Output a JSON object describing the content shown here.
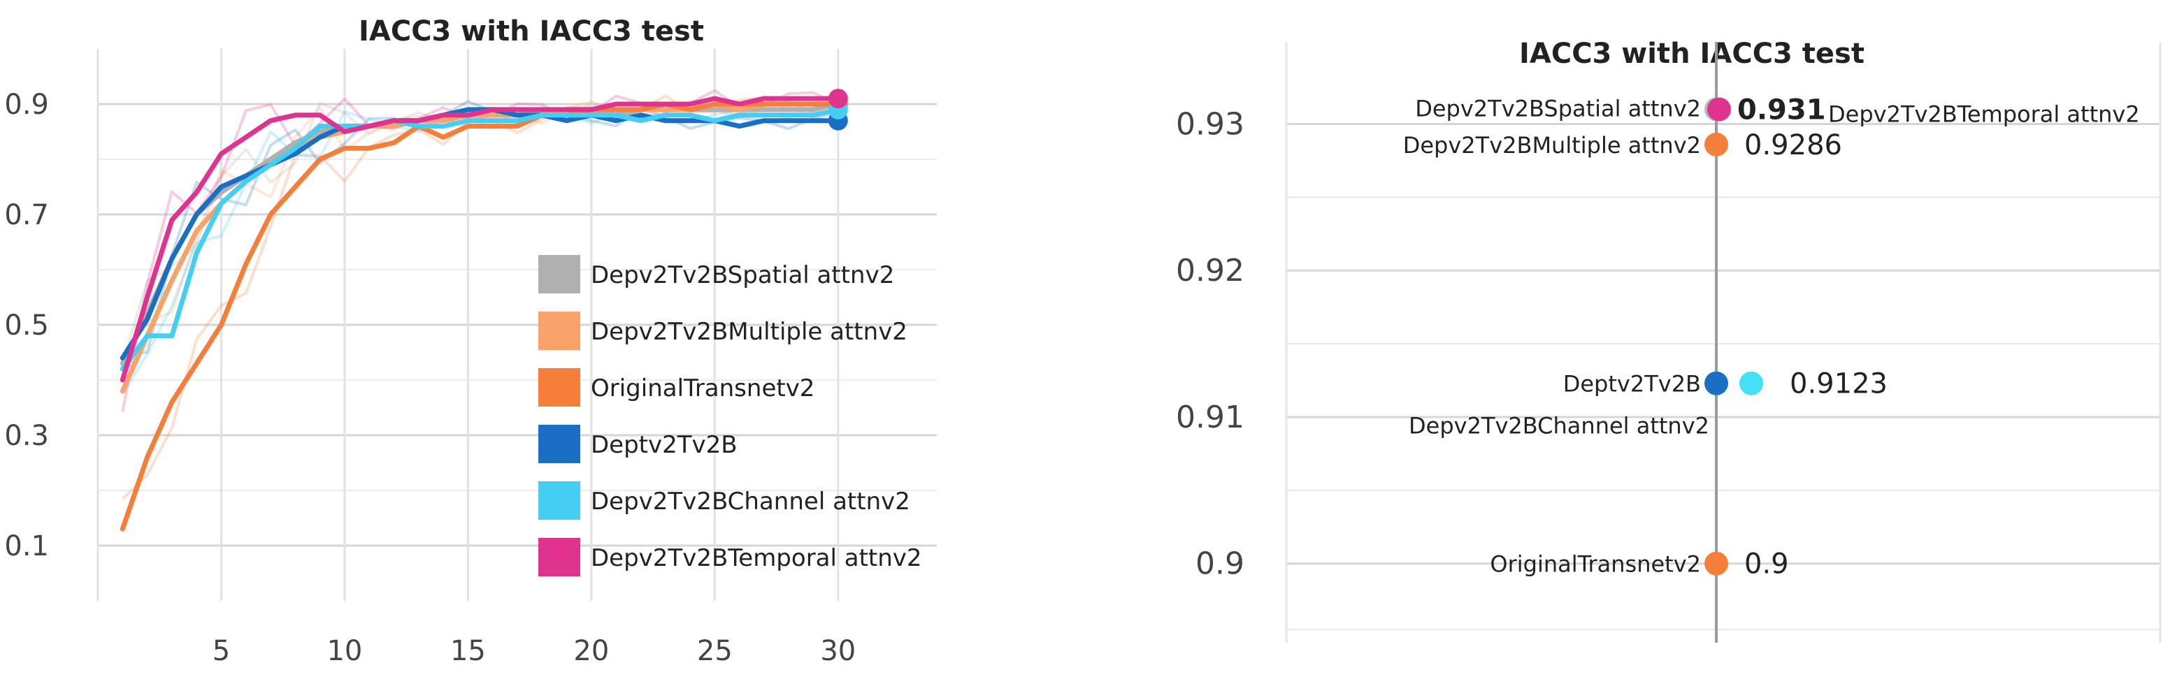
{
  "chart_data": [
    {
      "type": "line",
      "title": "IACC3 with IACC3 test",
      "xlabel": "",
      "ylabel": "",
      "xlim": [
        0,
        34
      ],
      "ylim": [
        0,
        1.0
      ],
      "xticks": [
        "5",
        "10",
        "15",
        "20",
        "25",
        "30"
      ],
      "xtick_values": [
        5,
        10,
        15,
        20,
        25,
        30
      ],
      "yticks": [
        "0.9",
        "0.7",
        "0.5",
        "0.3",
        "0.1"
      ],
      "ytick_values": [
        0.9,
        0.7,
        0.5,
        0.3,
        0.1
      ],
      "grid": true,
      "legend_position": "center-right",
      "x": [
        1,
        2,
        3,
        4,
        5,
        6,
        7,
        8,
        9,
        10,
        11,
        12,
        13,
        14,
        15,
        16,
        17,
        18,
        19,
        20,
        21,
        22,
        23,
        24,
        25,
        26,
        27,
        28,
        29,
        30
      ],
      "series": [
        {
          "name": "Depv2Tv2BSpatial attnv2",
          "color": "#b0b0b0",
          "values": [
            0.43,
            0.52,
            0.62,
            0.7,
            0.74,
            0.77,
            0.8,
            0.83,
            0.85,
            0.86,
            0.86,
            0.87,
            0.87,
            0.87,
            0.88,
            0.88,
            0.88,
            0.89,
            0.88,
            0.89,
            0.88,
            0.89,
            0.89,
            0.89,
            0.89,
            0.89,
            0.89,
            0.89,
            0.89,
            0.9
          ]
        },
        {
          "name": "Depv2Tv2BMultiple attnv2",
          "color": "#f8a36b",
          "values": [
            0.38,
            0.48,
            0.58,
            0.67,
            0.72,
            0.76,
            0.79,
            0.82,
            0.84,
            0.85,
            0.86,
            0.86,
            0.87,
            0.87,
            0.88,
            0.88,
            0.88,
            0.88,
            0.89,
            0.89,
            0.89,
            0.89,
            0.89,
            0.89,
            0.9,
            0.89,
            0.9,
            0.9,
            0.9,
            0.9
          ]
        },
        {
          "name": "OriginalTransnetv2",
          "color": "#f57f3a",
          "values": [
            0.13,
            0.26,
            0.36,
            0.43,
            0.5,
            0.61,
            0.7,
            0.75,
            0.8,
            0.82,
            0.82,
            0.83,
            0.86,
            0.84,
            0.86,
            0.86,
            0.86,
            0.88,
            0.88,
            0.89,
            0.89,
            0.89,
            0.9,
            0.89,
            0.9,
            0.9,
            0.9,
            0.9,
            0.9,
            0.9
          ]
        },
        {
          "name": "Deptv2Tv2B",
          "color": "#1a6fc4",
          "values": [
            0.44,
            0.51,
            0.62,
            0.7,
            0.75,
            0.77,
            0.79,
            0.81,
            0.84,
            0.86,
            0.86,
            0.87,
            0.87,
            0.88,
            0.89,
            0.89,
            0.88,
            0.88,
            0.87,
            0.88,
            0.87,
            0.88,
            0.87,
            0.87,
            0.87,
            0.86,
            0.87,
            0.87,
            0.87,
            0.87
          ]
        },
        {
          "name": "Depv2Tv2BChannel attnv2",
          "color": "#45cdf2",
          "values": [
            0.42,
            0.48,
            0.48,
            0.63,
            0.72,
            0.76,
            0.79,
            0.82,
            0.86,
            0.86,
            0.86,
            0.87,
            0.86,
            0.86,
            0.87,
            0.87,
            0.87,
            0.88,
            0.88,
            0.88,
            0.88,
            0.87,
            0.88,
            0.88,
            0.87,
            0.88,
            0.88,
            0.88,
            0.88,
            0.89
          ]
        },
        {
          "name": "Depv2Tv2BTemporal attnv2",
          "color": "#e0338f",
          "values": [
            0.4,
            0.55,
            0.69,
            0.74,
            0.81,
            0.84,
            0.87,
            0.88,
            0.88,
            0.85,
            0.86,
            0.87,
            0.87,
            0.88,
            0.88,
            0.89,
            0.89,
            0.89,
            0.89,
            0.89,
            0.9,
            0.9,
            0.9,
            0.9,
            0.91,
            0.9,
            0.91,
            0.91,
            0.91,
            0.91
          ]
        }
      ]
    },
    {
      "type": "scatter",
      "title": "IACC3 with IACC3 test",
      "xlabel": "",
      "ylabel": "",
      "ylim": [
        0.8946,
        0.9356
      ],
      "yticks": [
        "0.93",
        "0.92",
        "0.91",
        "0.9"
      ],
      "ytick_values": [
        0.93,
        0.92,
        0.91,
        0.9
      ],
      "grid": true,
      "points": [
        {
          "name": "Depv2Tv2BSpatial attnv2",
          "color": "#b8b8b8",
          "y": 0.931,
          "side": "center",
          "name_side": "left"
        },
        {
          "name": "Depv2Tv2BTemporal attnv2",
          "color": "#e0338f",
          "y": 0.931,
          "side": "center",
          "name_side": "right"
        },
        {
          "name": "Depv2Tv2BMultiple attnv2",
          "color": "#f57f3a",
          "y": 0.9286,
          "side": "center",
          "name_side": "left"
        },
        {
          "name": "Deptv2Tv2B",
          "color": "#1a6fc4",
          "y": 0.9123,
          "side": "center",
          "name_side": "left"
        },
        {
          "name": "Depv2Tv2BChannel attnv2",
          "color": "#45e0f5",
          "y": 0.9123,
          "side": "right",
          "name_side": "below-left"
        },
        {
          "name": "OriginalTransnetv2",
          "color": "#f57f3a",
          "y": 0.9,
          "side": "center",
          "name_side": "left"
        }
      ],
      "data_labels": [
        {
          "text": "0.931",
          "y": 0.931,
          "bold": true
        },
        {
          "text": "0.9286",
          "y": 0.9286,
          "bold": false
        },
        {
          "text": "0.9123",
          "y": 0.9123,
          "bold": false
        },
        {
          "text": "0.9",
          "y": 0.9,
          "bold": false
        }
      ]
    }
  ]
}
